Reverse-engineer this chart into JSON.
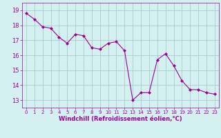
{
  "x": [
    0,
    1,
    2,
    3,
    4,
    5,
    6,
    7,
    8,
    9,
    10,
    11,
    12,
    13,
    14,
    15,
    16,
    17,
    18,
    19,
    20,
    21,
    22,
    23
  ],
  "y": [
    18.8,
    18.4,
    17.9,
    17.8,
    17.2,
    16.8,
    17.4,
    17.3,
    16.5,
    16.4,
    16.8,
    16.9,
    16.3,
    13.0,
    13.5,
    13.5,
    15.7,
    16.1,
    15.3,
    14.3,
    13.7,
    13.7,
    13.5,
    13.4
  ],
  "line_color": "#9b009b",
  "marker": "D",
  "marker_size": 2,
  "bg_color": "#d4f0f0",
  "grid_color": "#aacccc",
  "xlabel": "Windchill (Refroidissement éolien,°C)",
  "xlabel_color": "#9b009b",
  "tick_color": "#9b009b",
  "spine_color": "#9b009b",
  "ylim": [
    12.5,
    19.5
  ],
  "xlim": [
    -0.5,
    23.5
  ],
  "yticks": [
    13,
    14,
    15,
    16,
    17,
    18,
    19
  ],
  "xticks": [
    0,
    1,
    2,
    3,
    4,
    5,
    6,
    7,
    8,
    9,
    10,
    11,
    12,
    13,
    14,
    15,
    16,
    17,
    18,
    19,
    20,
    21,
    22,
    23
  ],
  "tick_fontsize": 5,
  "xlabel_fontsize": 6
}
